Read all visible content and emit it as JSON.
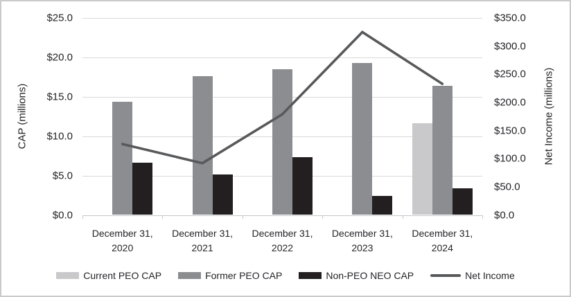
{
  "chart_data": {
    "type": "bar",
    "subtype": "combo-bar-line-dual-axis",
    "categories": [
      "December 31,\n2020",
      "December 31,\n2021",
      "December 31,\n2022",
      "December 31,\n2023",
      "December 31,\n2024"
    ],
    "bar_series": [
      {
        "name": "Current PEO CAP",
        "color": "#c9c9cb",
        "axis": "left",
        "values": [
          null,
          null,
          null,
          null,
          11.6
        ]
      },
      {
        "name": "Former PEO CAP",
        "color": "#8b8d90",
        "axis": "left",
        "values": [
          14.4,
          17.6,
          18.5,
          19.3,
          16.4
        ]
      },
      {
        "name": "Non-PEO NEO CAP",
        "color": "#231f20",
        "axis": "left",
        "values": [
          6.6,
          5.1,
          7.3,
          2.4,
          3.4
        ]
      }
    ],
    "line_series": {
      "name": "Net Income",
      "color": "#58595b",
      "axis": "right",
      "values": [
        126,
        92,
        179,
        325,
        233
      ]
    },
    "left_axis": {
      "title": "CAP (millions)",
      "range": [
        0,
        25
      ],
      "tick_values": [
        0,
        5,
        10,
        15,
        20,
        25
      ],
      "tick_labels": [
        "$0.0",
        "$5.0",
        "$10.0",
        "$15.0",
        "$20.0",
        "$25.0"
      ]
    },
    "right_axis": {
      "title": "Net Income (millions)",
      "range": [
        0,
        350
      ],
      "tick_values": [
        0,
        50,
        100,
        150,
        200,
        250,
        300,
        350
      ],
      "tick_labels": [
        "$0.0",
        "$50.0",
        "$100.0",
        "$150.0",
        "$200.0",
        "$250.0",
        "$300.0",
        "$350.0"
      ]
    },
    "legend_position": "bottom",
    "grid": "horizontal-left-axis-only",
    "colors": {
      "gridline": "#d9d9d9",
      "axis_line": "#c3c6c8",
      "text": "#232427",
      "frame_border": "#c9cacb",
      "background": "#ffffff"
    }
  }
}
